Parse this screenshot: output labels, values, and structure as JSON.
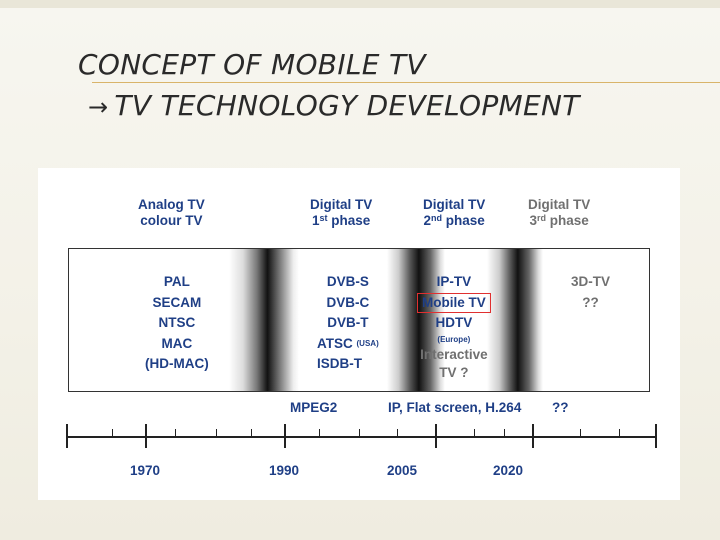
{
  "slide": {
    "title_line1": "CONCEPT OF MOBILE TV",
    "title_line2": "TV TECHNOLOGY DEVELOPMENT",
    "title_arrow": "→"
  },
  "headers": [
    {
      "line1": "Analog TV",
      "line2": "colour TV"
    },
    {
      "line1": "Digital TV",
      "line2_pre": "1",
      "line2_sup": "st",
      "line2_post": " phase"
    },
    {
      "line1": "Digital TV",
      "line2_pre": "2",
      "line2_sup": "nd",
      "line2_post": " phase"
    },
    {
      "line1": "Digital TV",
      "line2_pre": "3",
      "line2_sup": "rd",
      "line2_post": " phase"
    }
  ],
  "columns": {
    "analog": [
      "PAL",
      "SECAM",
      "NTSC",
      "MAC",
      "(HD-MAC)"
    ],
    "phase1": {
      "items": [
        "DVB-S",
        "DVB-C",
        "DVB-T"
      ],
      "atsc": "ATSC",
      "atsc_note": "(USA)",
      "last": "ISDB-T"
    },
    "phase2": {
      "item1": "IP-TV",
      "mobile_tv": "Mobile TV",
      "item3": "HDTV",
      "note": "(Europe)",
      "interactive": "Interactive",
      "tv": "TV ?"
    },
    "phase3": [
      "3D-TV",
      "??"
    ]
  },
  "timeline": {
    "codecs": [
      "MPEG2",
      "IP, Flat screen, H.264",
      "??"
    ],
    "years": [
      "1970",
      "1990",
      "2005",
      "2020"
    ]
  },
  "colors": {
    "text_blue": "#1f3f86",
    "text_gray": "#707070",
    "highlight_red": "#e03030"
  }
}
